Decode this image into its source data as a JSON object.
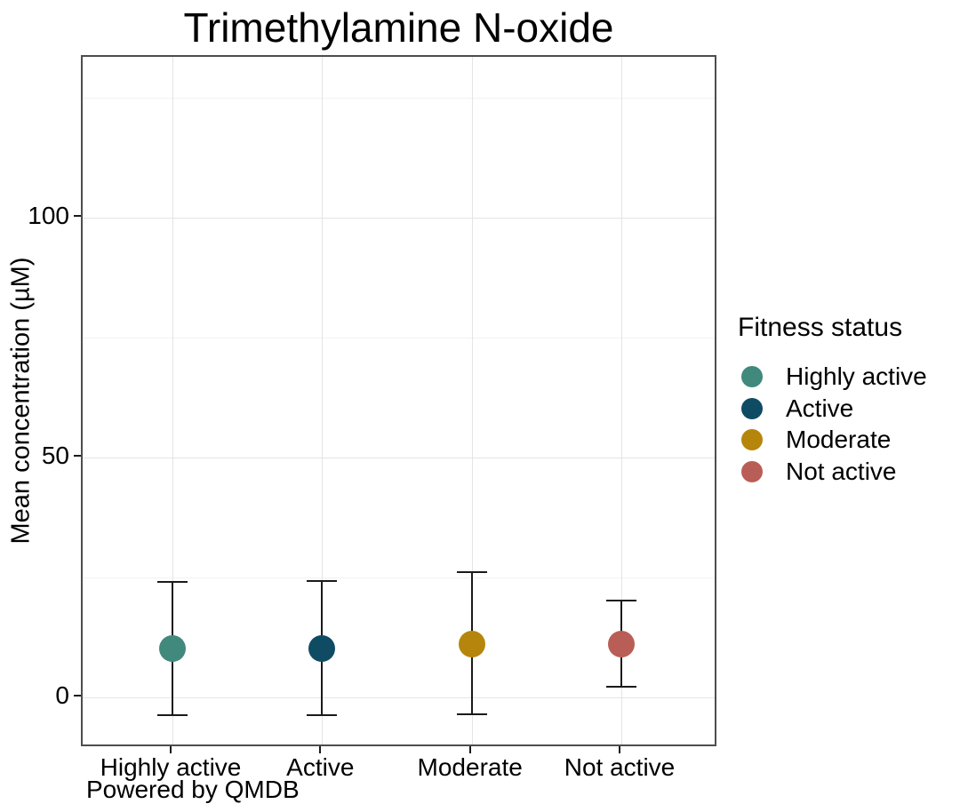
{
  "chart_data": {
    "type": "scatter",
    "title": "Trimethylamine N-oxide",
    "xlabel": "",
    "ylabel": "Mean concentration (µM)",
    "caption": "Powered by QMDB",
    "categories": [
      "Highly active",
      "Active",
      "Moderate",
      "Not active"
    ],
    "series": [
      {
        "name": "Highly active",
        "mean": 10.2,
        "lower": -3.7,
        "upper": 24.1,
        "color": "#40897c"
      },
      {
        "name": "Active",
        "mean": 10.2,
        "lower": -3.7,
        "upper": 24.2,
        "color": "#0f4c64"
      },
      {
        "name": "Moderate",
        "mean": 11.1,
        "lower": -3.5,
        "upper": 26.1,
        "color": "#b5860b"
      },
      {
        "name": "Not active",
        "mean": 11.1,
        "lower": 2.2,
        "upper": 20.2,
        "color": "#b95e56"
      }
    ],
    "ylim": [
      -10.6,
      133.3
    ],
    "yticks": [
      0,
      50,
      100
    ],
    "yticks_minor": [
      25,
      75,
      125
    ],
    "grid": true,
    "legend_position": "right",
    "legend": {
      "title": "Fitness status",
      "items": [
        "Highly active",
        "Active",
        "Moderate",
        "Not active"
      ]
    }
  }
}
